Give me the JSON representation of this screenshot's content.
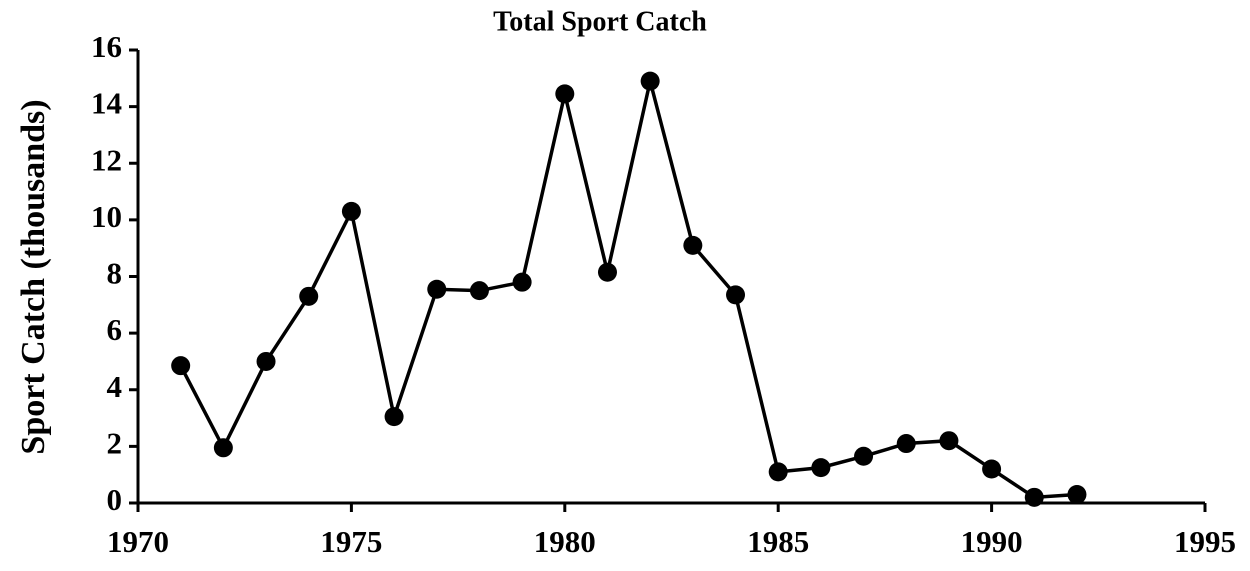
{
  "chart_data": {
    "type": "line",
    "title": "Total Sport Catch",
    "ylabel": "Sport Catch (thousands)",
    "x": [
      1971,
      1972,
      1973,
      1974,
      1975,
      1976,
      1977,
      1978,
      1979,
      1980,
      1981,
      1982,
      1983,
      1984,
      1985,
      1986,
      1987,
      1988,
      1989,
      1990,
      1991,
      1992
    ],
    "series": [
      {
        "color": "#000000",
        "values": [
          4.85,
          1.95,
          5.0,
          7.3,
          10.3,
          3.05,
          7.55,
          7.5,
          7.8,
          14.45,
          8.15,
          14.9,
          9.1,
          7.35,
          1.1,
          1.25,
          1.65,
          2.1,
          2.2,
          1.2,
          0.2,
          0.3
        ]
      }
    ],
    "xlim": [
      1970,
      1995
    ],
    "xticks": [
      1970,
      1975,
      1980,
      1985,
      1990,
      1995
    ],
    "ylim": [
      0,
      16
    ],
    "yticks": [
      0,
      2,
      4,
      6,
      8,
      10,
      12,
      14,
      16
    ],
    "grid": false
  }
}
